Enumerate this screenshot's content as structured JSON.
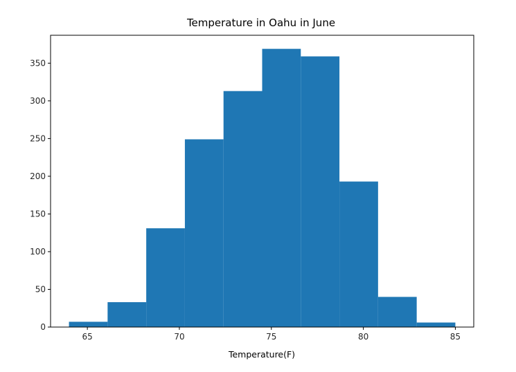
{
  "chart_data": {
    "type": "bar",
    "subtype": "histogram",
    "title": "Temperature in Oahu in June",
    "xlabel": "Temperature(F)",
    "ylabel": "",
    "bin_edges": [
      64.0,
      66.1,
      68.2,
      70.3,
      72.4,
      74.5,
      76.6,
      78.7,
      80.8,
      82.9,
      85.0
    ],
    "values": [
      7,
      33,
      131,
      249,
      313,
      369,
      359,
      193,
      40,
      6
    ],
    "xlim": [
      63.0,
      86.0
    ],
    "ylim": [
      0,
      387
    ],
    "xticks": [
      65,
      70,
      75,
      80,
      85
    ],
    "yticks": [
      0,
      50,
      100,
      150,
      200,
      250,
      300,
      350
    ],
    "bar_color": "#1f77b4",
    "grid": false,
    "legend": "none"
  }
}
